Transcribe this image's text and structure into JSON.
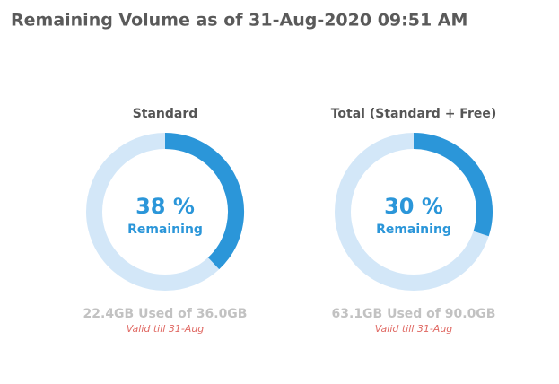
{
  "header": {
    "title": "Remaining Volume as of 31-Aug-2020 09:51 AM"
  },
  "chart_data": [
    {
      "type": "donut",
      "title": "Standard",
      "values": [
        38
      ],
      "value_labels": [
        "38 %"
      ],
      "center_label": "Remaining",
      "footer": "22.4GB Used of 36.0GB",
      "note": "Valid till 31-Aug",
      "color": "#2b96d9",
      "track_color": "#d3e7f8"
    },
    {
      "type": "donut",
      "title": "Total (Standard + Free)",
      "values": [
        30
      ],
      "value_labels": [
        "30 %"
      ],
      "center_label": "Remaining",
      "footer": "63.1GB Used of 90.0GB",
      "note": "Valid till 31-Aug",
      "color": "#2b96d9",
      "track_color": "#d3e7f8"
    }
  ]
}
